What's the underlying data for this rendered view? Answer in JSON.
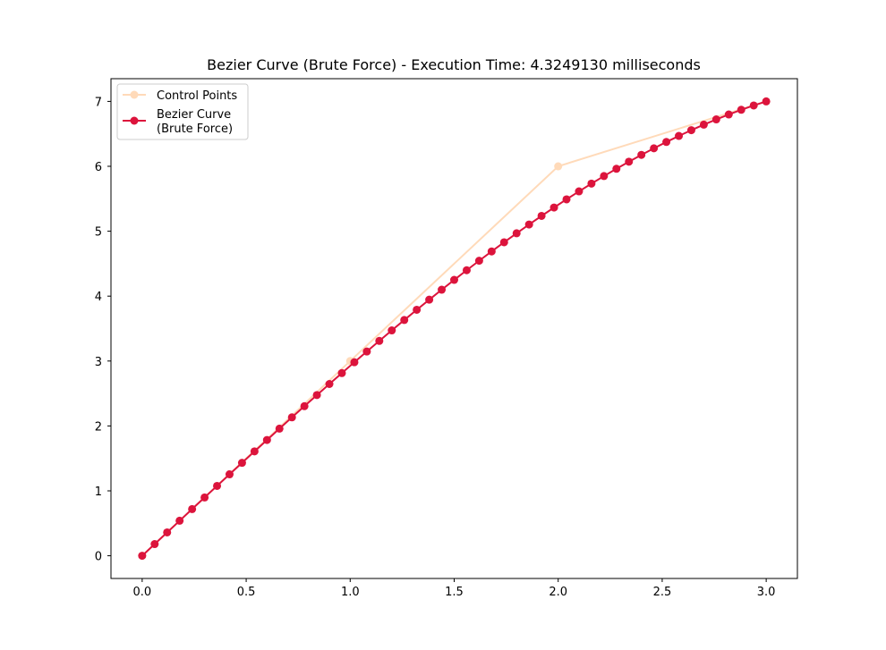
{
  "chart_data": {
    "type": "line",
    "title": "Bezier Curve (Brute Force) - Execution Time: 4.3249130 milliseconds",
    "xlabel": "",
    "ylabel": "",
    "xlim": [
      -0.15,
      3.15
    ],
    "ylim": [
      -0.35,
      7.35
    ],
    "xticks": [
      0.0,
      0.5,
      1.0,
      1.5,
      2.0,
      2.5,
      3.0
    ],
    "xtick_labels": [
      "0.0",
      "0.5",
      "1.0",
      "1.5",
      "2.0",
      "2.5",
      "3.0"
    ],
    "yticks": [
      0,
      1,
      2,
      3,
      4,
      5,
      6,
      7
    ],
    "ytick_labels": [
      "0",
      "1",
      "2",
      "3",
      "4",
      "5",
      "6",
      "7"
    ],
    "grid": false,
    "legend_position": "top-left",
    "series": [
      {
        "name": "Control Points",
        "color": "#ffdab9",
        "marker": "circle",
        "points": [
          [
            0,
            0
          ],
          [
            1,
            3
          ],
          [
            2,
            6
          ],
          [
            3,
            7
          ]
        ]
      },
      {
        "name": "Bezier Curve\n(Brute Force)",
        "color": "#dc143c",
        "marker": "circle",
        "curve": {
          "kind": "cubic-bezier",
          "control_points": [
            [
              0,
              0
            ],
            [
              1,
              3
            ],
            [
              2,
              6
            ],
            [
              3,
              7
            ]
          ],
          "samples": 51
        }
      }
    ]
  }
}
